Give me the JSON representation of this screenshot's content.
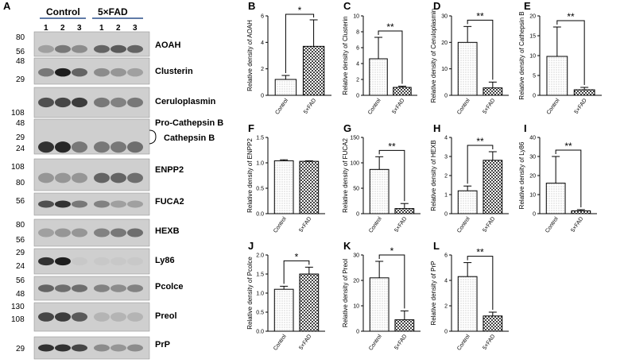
{
  "blots": {
    "panel_letter": "A",
    "groups": [
      "Control",
      "5×FAD"
    ],
    "lanes": [
      "1",
      "2",
      "3",
      "1",
      "2",
      "3"
    ],
    "strips": [
      {
        "label": "AOAH",
        "markers": [
          "80",
          "56"
        ]
      },
      {
        "label": "Clusterin",
        "markers": [
          "48",
          "29"
        ]
      },
      {
        "label": "Ceruloplasmin",
        "markers": [
          "108"
        ]
      },
      {
        "label": "Pro-Cathepsin B",
        "markers": [
          "48",
          "29",
          "24"
        ]
      },
      {
        "label": "Cathepsin B",
        "markers": []
      },
      {
        "label": "ENPP2",
        "markers": [
          "108",
          "80"
        ]
      },
      {
        "label": "FUCA2",
        "markers": [
          "56"
        ]
      },
      {
        "label": "HEXB",
        "markers": [
          "80",
          "56"
        ]
      },
      {
        "label": "Ly86",
        "markers": [
          "29",
          "24"
        ]
      },
      {
        "label": "Pcolce",
        "markers": [
          "56",
          "48"
        ]
      },
      {
        "label": "Preol",
        "markers": [
          "130",
          "108"
        ]
      },
      {
        "label": "PrP",
        "markers": [
          "29"
        ]
      }
    ]
  },
  "chart_data": [
    {
      "panel": "B",
      "type": "bar",
      "categories": [
        "Control",
        "5×FAD"
      ],
      "values": [
        1.2,
        3.7
      ],
      "errors": [
        0.3,
        2.0
      ],
      "ylabel": "Relative density of AOAH",
      "ylim": [
        0,
        6
      ],
      "yticks": [
        "0",
        "2",
        "4",
        "6"
      ],
      "significance": "*"
    },
    {
      "panel": "C",
      "type": "bar",
      "categories": [
        "Control",
        "5×FAD"
      ],
      "values": [
        4.6,
        1.0
      ],
      "errors": [
        2.7,
        0.15
      ],
      "ylabel": "Relative density of Clusterin",
      "ylim": [
        0,
        10
      ],
      "yticks": [
        "0",
        "2",
        "4",
        "6",
        "8",
        "10"
      ],
      "significance": "**"
    },
    {
      "panel": "D",
      "type": "bar",
      "categories": [
        "Control",
        "5×FAD"
      ],
      "values": [
        20,
        2.8
      ],
      "errors": [
        6,
        2.2
      ],
      "ylabel": "Relative density of Ceruloplasmin",
      "ylim": [
        0,
        30
      ],
      "yticks": [
        "0",
        "10",
        "20",
        "30"
      ],
      "significance": "**"
    },
    {
      "panel": "E",
      "type": "bar",
      "categories": [
        "Control",
        "5×FAD"
      ],
      "values": [
        9.8,
        1.4
      ],
      "errors": [
        7.4,
        0.6
      ],
      "ylabel": "Relative density of Cathepsin B",
      "ylim": [
        0,
        20
      ],
      "yticks": [
        "0",
        "5",
        "10",
        "15",
        "20"
      ],
      "significance": "**"
    },
    {
      "panel": "F",
      "type": "bar",
      "categories": [
        "Control",
        "5×FAD"
      ],
      "values": [
        1.04,
        1.03
      ],
      "errors": [
        0.02,
        0.01
      ],
      "ylabel": "Relative density of ENPP2",
      "ylim": [
        0,
        1.5
      ],
      "yticks": [
        "0.0",
        "0.5",
        "1.0",
        "1.5"
      ],
      "significance": ""
    },
    {
      "panel": "G",
      "type": "bar",
      "categories": [
        "Control",
        "5×FAD"
      ],
      "values": [
        87,
        10
      ],
      "errors": [
        25,
        10
      ],
      "ylabel": "Relative density of FUCA2",
      "ylim": [
        0,
        150
      ],
      "yticks": [
        "0",
        "50",
        "100",
        "150"
      ],
      "significance": "**"
    },
    {
      "panel": "H",
      "type": "bar",
      "categories": [
        "Control",
        "5×FAD"
      ],
      "values": [
        1.2,
        2.8
      ],
      "errors": [
        0.25,
        0.45
      ],
      "ylabel": "Relative density of HEXB",
      "ylim": [
        0,
        4
      ],
      "yticks": [
        "0",
        "1",
        "2",
        "3",
        "4"
      ],
      "significance": "**"
    },
    {
      "panel": "I",
      "type": "bar",
      "categories": [
        "Control",
        "5×FAD"
      ],
      "values": [
        16,
        1.5
      ],
      "errors": [
        14,
        0.6
      ],
      "ylabel": "Relative density of Ly86",
      "ylim": [
        0,
        40
      ],
      "yticks": [
        "0",
        "10",
        "20",
        "30",
        "40"
      ],
      "significance": "**"
    },
    {
      "panel": "J",
      "type": "bar",
      "categories": [
        "Control",
        "5×FAD"
      ],
      "values": [
        1.1,
        1.5
      ],
      "errors": [
        0.08,
        0.18
      ],
      "ylabel": "Relative density of Pcolce",
      "ylim": [
        0,
        2
      ],
      "yticks": [
        "0.0",
        "0.5",
        "1.0",
        "1.5",
        "2.0"
      ],
      "significance": "*"
    },
    {
      "panel": "K",
      "type": "bar",
      "categories": [
        "Control",
        "5×FAD"
      ],
      "values": [
        21,
        4.5
      ],
      "errors": [
        6.5,
        3.5
      ],
      "ylabel": "Relative density of Preol",
      "ylim": [
        0,
        30
      ],
      "yticks": [
        "0",
        "10",
        "20",
        "30"
      ],
      "significance": "*"
    },
    {
      "panel": "L",
      "type": "bar",
      "categories": [
        "Control",
        "5×FAD"
      ],
      "values": [
        4.3,
        1.2
      ],
      "errors": [
        1.1,
        0.3
      ],
      "ylabel": "Relative density of PrP",
      "ylim": [
        0,
        6
      ],
      "yticks": [
        "0",
        "2",
        "4",
        "6"
      ],
      "significance": "**"
    }
  ],
  "colors": {
    "bar_fill": "#ffffff",
    "bar_dots": "#9a9a9a",
    "checker": "#555555",
    "axis": "#000000",
    "blot_bg": "#d6d6d6",
    "band": "#1e1e1e"
  }
}
